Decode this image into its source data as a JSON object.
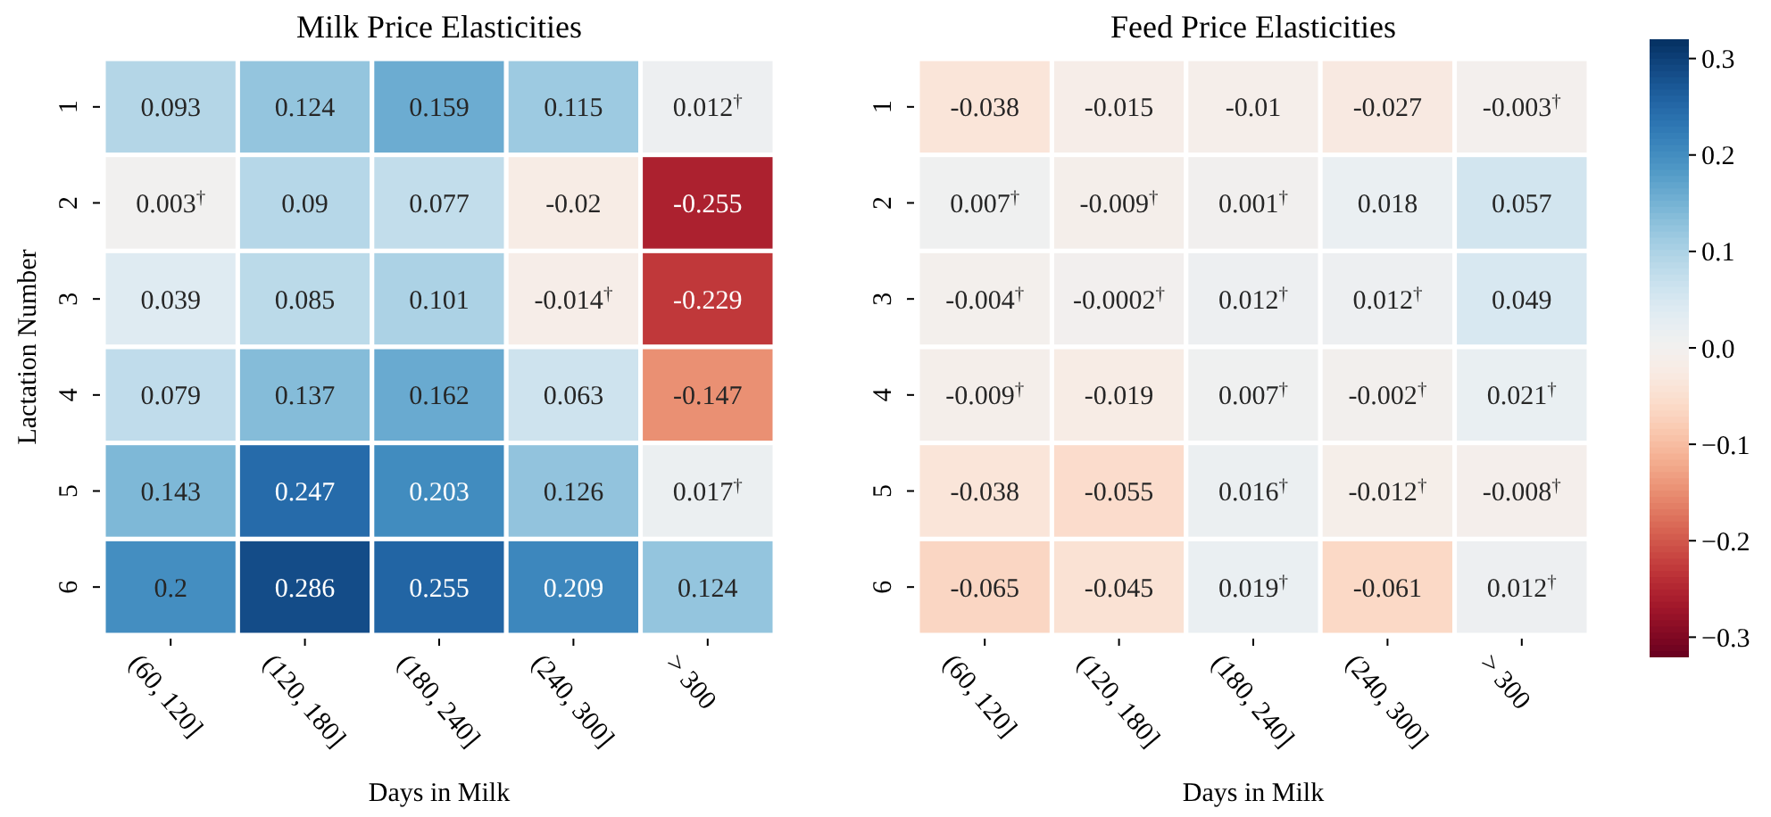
{
  "chart_data": [
    {
      "type": "heatmap",
      "title": "Milk Price Elasticities",
      "xlabel": "Days in Milk",
      "ylabel": "Lactation Number",
      "categories": [
        "(60, 120]",
        "(120, 180]",
        "(180, 240]",
        "(240, 300]",
        "> 300"
      ],
      "y_categories": [
        "1",
        "2",
        "3",
        "4",
        "5",
        "6"
      ],
      "cells": [
        [
          0.093,
          0.124,
          0.159,
          0.115,
          0.012
        ],
        [
          0.003,
          0.09,
          0.077,
          -0.02,
          -0.255
        ],
        [
          0.039,
          0.085,
          0.101,
          -0.014,
          -0.229
        ],
        [
          0.079,
          0.137,
          0.162,
          0.063,
          -0.147
        ],
        [
          0.143,
          0.247,
          0.203,
          0.126,
          0.017
        ],
        [
          0.2,
          0.286,
          0.255,
          0.209,
          0.124
        ]
      ],
      "cell_labels": [
        [
          "0.093",
          "0.124",
          "0.159",
          "0.115",
          "0.012$^{†}$"
        ],
        [
          "0.003$^{†}$",
          "0.09",
          "0.077",
          "-0.02",
          "-0.255"
        ],
        [
          "0.039",
          "0.085",
          "0.101",
          "-0.014$^{†}$",
          "-0.229"
        ],
        [
          "0.079",
          "0.137",
          "0.162",
          "0.063",
          "-0.147"
        ],
        [
          "0.143",
          "0.247",
          "0.203",
          "0.126",
          "0.017$^{†}$"
        ],
        [
          "0.2",
          "0.286",
          "0.255",
          "0.209",
          "0.124"
        ]
      ]
    },
    {
      "type": "heatmap",
      "title": "Feed Price Elasticities",
      "xlabel": "Days in Milk",
      "categories": [
        "(60, 120]",
        "(120, 180]",
        "(180, 240]",
        "(240, 300]",
        "> 300"
      ],
      "y_categories": [
        "1",
        "2",
        "3",
        "4",
        "5",
        "6"
      ],
      "cells": [
        [
          -0.038,
          -0.015,
          -0.01,
          -0.027,
          -0.003
        ],
        [
          0.007,
          -0.009,
          0.001,
          0.018,
          0.057
        ],
        [
          -0.004,
          -0.0002,
          0.012,
          0.012,
          0.049
        ],
        [
          -0.009,
          -0.019,
          0.007,
          -0.002,
          0.021
        ],
        [
          -0.038,
          -0.055,
          0.016,
          -0.012,
          -0.008
        ],
        [
          -0.065,
          -0.045,
          0.019,
          -0.061,
          0.012
        ]
      ],
      "cell_labels": [
        [
          "-0.038",
          "-0.015",
          "-0.01",
          "-0.027",
          "-0.003$^{†}$"
        ],
        [
          "0.007$^{†}$",
          "-0.009$^{†}$",
          "0.001$^{†}$",
          "0.018",
          "0.057"
        ],
        [
          "-0.004$^{†}$",
          "-0.0002$^{†}$",
          "0.012$^{†}$",
          "0.012$^{†}$",
          "0.049"
        ],
        [
          "-0.009$^{†}$",
          "-0.019",
          "0.007$^{†}$",
          "-0.002$^{†}$",
          "0.021$^{†}$"
        ],
        [
          "-0.038",
          "-0.055",
          "0.016$^{†}$",
          "-0.012$^{†}$",
          "-0.008$^{†}$"
        ],
        [
          "-0.065",
          "-0.045",
          "0.019$^{†}$",
          "-0.061",
          "0.012$^{†}$"
        ]
      ],
      "clim": [
        -0.32,
        0.32
      ],
      "cticks": [
        {
          "value": -0.3,
          "label": "−0.3"
        },
        {
          "value": -0.2,
          "label": "−0.2"
        },
        {
          "value": -0.1,
          "label": "−0.1"
        },
        {
          "value": 0,
          "label": "0.0"
        },
        {
          "value": 0.1,
          "label": "0.1"
        },
        {
          "value": 0.2,
          "label": "0.2"
        },
        {
          "value": 0.3,
          "label": "0.3"
        }
      ]
    }
  ]
}
